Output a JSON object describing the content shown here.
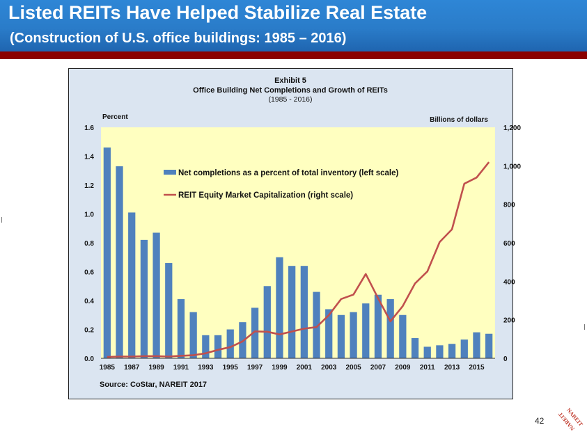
{
  "slide": {
    "title": "Listed REITs Have Helped Stabilize Real Estate",
    "subtitle": "(Construction of U.S. office buildings: 1985 – 2016)",
    "page_number": "42",
    "logo_text": "NAREIT"
  },
  "colors": {
    "bar": "#4f81bd",
    "line": "#c0504d",
    "plot_bg": "#ffffc0",
    "frame_bg": "#dbe5f1",
    "title_bar": "#2a7cc9",
    "band": "#8b0000"
  },
  "chart_data": {
    "type": "bar+line",
    "title": "Exhibit 5",
    "subtitle": "Office Building Net Completions and Growth of REITs",
    "period": "(1985 - 2016)",
    "left_axis_title": "Percent",
    "right_axis_title": "Billions of dollars",
    "source": "Source: CoStar, NAREIT 2017",
    "ylim_left": [
      0,
      1.6
    ],
    "ylim_right": [
      0,
      1200
    ],
    "left_ticks": [
      "0.0",
      "0.2",
      "0.4",
      "0.6",
      "0.8",
      "1.0",
      "1.2",
      "1.4",
      "1.6"
    ],
    "right_ticks": [
      "0",
      "200",
      "400",
      "600",
      "800",
      "1,000",
      "1,200"
    ],
    "x_tick_labels": [
      "1985",
      "1987",
      "1989",
      "1991",
      "1993",
      "1995",
      "1997",
      "1999",
      "2001",
      "2003",
      "2005",
      "2007",
      "2009",
      "2011",
      "2013",
      "2015"
    ],
    "categories": [
      "1985",
      "1986",
      "1987",
      "1988",
      "1989",
      "1990",
      "1991",
      "1992",
      "1993",
      "1994",
      "1995",
      "1996",
      "1997",
      "1998",
      "1999",
      "2000",
      "2001",
      "2002",
      "2003",
      "2004",
      "2005",
      "2006",
      "2007",
      "2008",
      "2009",
      "2010",
      "2011",
      "2012",
      "2013",
      "2014",
      "2015",
      "2016"
    ],
    "series": [
      {
        "name": "Net completions as a percent of total inventory (left scale)",
        "type": "bar",
        "axis": "left",
        "values": [
          1.46,
          1.33,
          1.01,
          0.82,
          0.87,
          0.66,
          0.41,
          0.32,
          0.16,
          0.16,
          0.2,
          0.25,
          0.35,
          0.5,
          0.7,
          0.64,
          0.64,
          0.46,
          0.34,
          0.3,
          0.32,
          0.38,
          0.44,
          0.41,
          0.3,
          0.14,
          0.08,
          0.09,
          0.1,
          0.13,
          0.18,
          0.17
        ]
      },
      {
        "name": "REIT Equity Market Capitalization (right scale)",
        "type": "line",
        "axis": "right",
        "values": [
          7,
          9,
          9,
          11,
          11,
          9,
          13,
          16,
          26,
          44,
          58,
          88,
          140,
          138,
          124,
          139,
          154,
          162,
          224,
          308,
          331,
          438,
          312,
          192,
          271,
          389,
          451,
          604,
          670,
          907,
          939,
          1019
        ]
      }
    ]
  }
}
